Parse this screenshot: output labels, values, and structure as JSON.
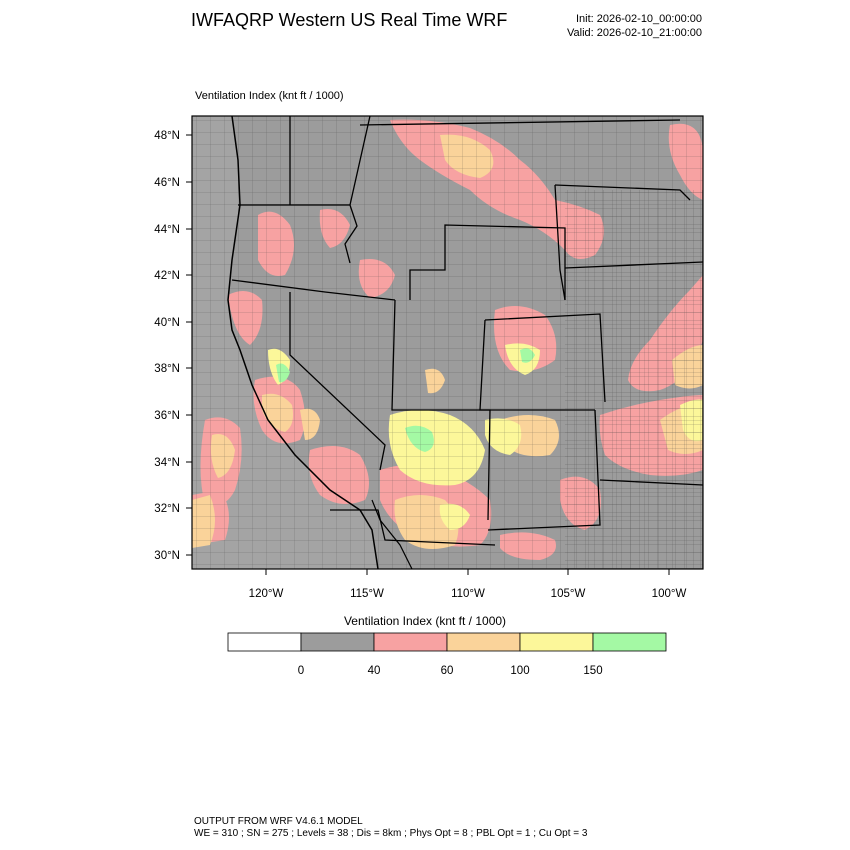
{
  "header": {
    "title": "IWFAQRP Western US Real Time WRF",
    "init": "Init: 2026-02-10_00:00:00",
    "valid": "Valid: 2026-02-10_21:00:00"
  },
  "map": {
    "field_label": "Ventilation Index   (knt ft / 1000)",
    "lat_labels": [
      "48°N",
      "46°N",
      "44°N",
      "42°N",
      "40°N",
      "38°N",
      "36°N",
      "34°N",
      "32°N",
      "30°N"
    ],
    "lon_labels": [
      "120°W",
      "115°W",
      "110°W",
      "105°W",
      "100°W"
    ],
    "region": "Western US"
  },
  "colorbar": {
    "title": "Ventilation Index   (knt ft / 1000)",
    "bins": [
      {
        "color": "#ffffff"
      },
      {
        "color": "#9c9c9c"
      },
      {
        "color": "#f7a2a2"
      },
      {
        "color": "#fad39a"
      },
      {
        "color": "#fcf79a"
      },
      {
        "color": "#a4f9a4"
      }
    ],
    "tick_labels": [
      "0",
      "40",
      "60",
      "100",
      "150"
    ]
  },
  "footer": {
    "line1": "OUTPUT FROM WRF V4.6.1 MODEL",
    "line2": "WE = 310 ; SN = 275 ; Levels = 38 ; Dis = 8km ; Phys Opt = 8 ; PBL Opt = 1 ; Cu Opt = 3"
  }
}
